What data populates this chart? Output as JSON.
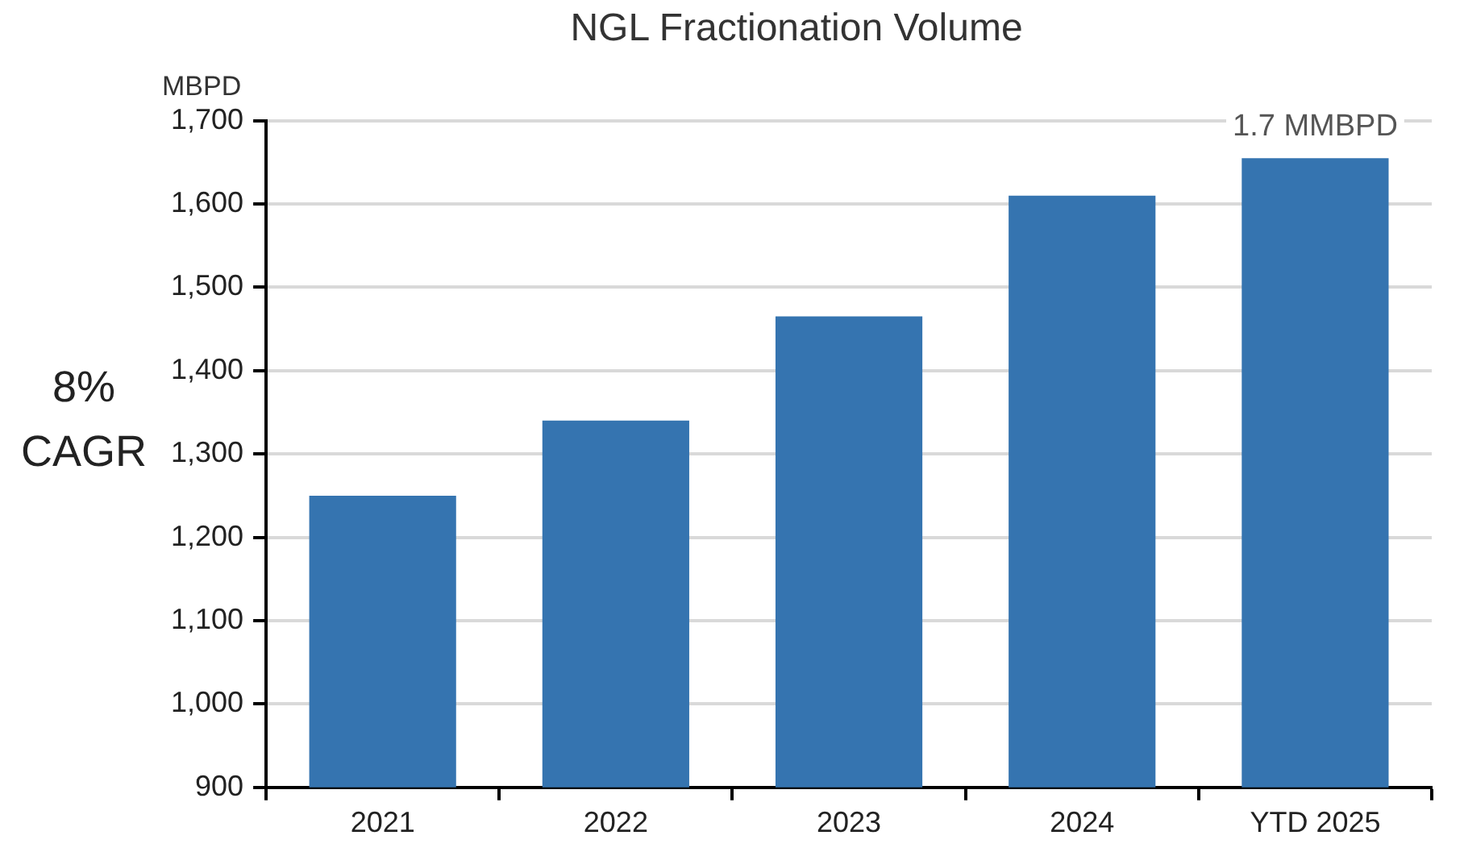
{
  "chart_data": {
    "type": "bar",
    "title": "NGL Fractionation Volume",
    "ylabel": "MBPD",
    "categories": [
      "2021",
      "2022",
      "2023",
      "2024",
      "YTD 2025"
    ],
    "values": [
      1250,
      1340,
      1465,
      1610,
      1655
    ],
    "color": "#3574b0",
    "ylim": [
      900,
      1700
    ],
    "yticks": [
      {
        "value": 900,
        "label": "900"
      },
      {
        "value": 1000,
        "label": "1,000"
      },
      {
        "value": 1100,
        "label": "1,100"
      },
      {
        "value": 1200,
        "label": "1,200"
      },
      {
        "value": 1300,
        "label": "1,300"
      },
      {
        "value": 1400,
        "label": "1,400"
      },
      {
        "value": 1500,
        "label": "1,500"
      },
      {
        "value": 1600,
        "label": "1,600"
      },
      {
        "value": 1700,
        "label": "1,700"
      }
    ],
    "grid": "y",
    "annotations": [
      "8% CAGR",
      {
        "text": "1.7 MMBPD",
        "x": "YTD 2025",
        "y": 1655
      }
    ]
  }
}
